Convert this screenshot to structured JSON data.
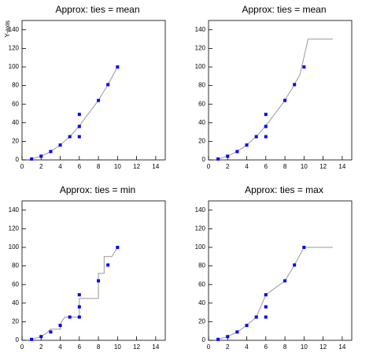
{
  "chart_data": [
    {
      "type": "scatter",
      "title": "Approx: ties = mean",
      "ylabel": "Y-axis",
      "xlim": [
        0,
        15
      ],
      "ylim": [
        0,
        150
      ],
      "xticks": [
        0,
        2,
        4,
        6,
        8,
        10,
        12,
        14
      ],
      "yticks": [
        0,
        20,
        40,
        60,
        80,
        100,
        120,
        140
      ],
      "points": {
        "color": "#0000ff",
        "x": [
          1,
          2,
          3,
          4,
          5,
          6,
          6,
          6,
          8,
          9,
          10
        ],
        "y": [
          1,
          4,
          9,
          16,
          25,
          25,
          36,
          49,
          64,
          81,
          100
        ]
      },
      "curve": {
        "color": "#999999",
        "x": [
          1,
          2,
          3,
          4,
          5,
          6,
          8,
          9,
          10
        ],
        "y": [
          1,
          4,
          9,
          16,
          25,
          36.67,
          64,
          81,
          100
        ]
      }
    },
    {
      "type": "scatter",
      "title": "Approx: ties = mean",
      "xlim": [
        0,
        15
      ],
      "ylim": [
        0,
        150
      ],
      "xticks": [
        0,
        2,
        4,
        6,
        8,
        10,
        12,
        14
      ],
      "yticks": [
        0,
        20,
        40,
        60,
        80,
        100,
        120,
        140
      ],
      "points": {
        "color": "#0000ff",
        "x": [
          1,
          2,
          3,
          4,
          5,
          6,
          6,
          6,
          8,
          9,
          10
        ],
        "y": [
          1,
          4,
          9,
          16,
          25,
          25,
          36,
          49,
          64,
          81,
          100
        ]
      },
      "curve": {
        "color": "#999999",
        "x": [
          1,
          1.857,
          2.714,
          3.571,
          4.429,
          5.286,
          6.143,
          7,
          7.857,
          8.714,
          9.571,
          10.429,
          11.286,
          12.143,
          13
        ],
        "y": [
          1,
          3.57,
          7.57,
          13,
          19.86,
          28.33,
          38.62,
          50.33,
          62.05,
          76.14,
          91.86,
          130,
          130,
          130,
          130
        ]
      }
    },
    {
      "type": "scatter",
      "title": "Approx: ties = min",
      "xlim": [
        0,
        15
      ],
      "ylim": [
        0,
        150
      ],
      "xticks": [
        0,
        2,
        4,
        6,
        8,
        10,
        12,
        14
      ],
      "yticks": [
        0,
        20,
        40,
        60,
        80,
        100,
        120,
        140
      ],
      "points": {
        "color": "#0000ff",
        "x": [
          1,
          2,
          3,
          4,
          5,
          6,
          6,
          6,
          8,
          9,
          10
        ],
        "y": [
          1,
          4,
          9,
          16,
          25,
          25,
          36,
          49,
          64,
          81,
          100
        ]
      },
      "curve": {
        "color": "#999999",
        "x": [
          1,
          2,
          2.6,
          3,
          4,
          4,
          4.5,
          6,
          6,
          8,
          8,
          8.6,
          8.6,
          9.4,
          10
        ],
        "y": [
          1,
          4,
          8,
          12,
          12,
          18,
          25,
          25,
          45,
          45,
          72,
          72,
          90,
          90,
          100
        ]
      }
    },
    {
      "type": "scatter",
      "title": "Approx: ties = max",
      "xlim": [
        0,
        15
      ],
      "ylim": [
        0,
        150
      ],
      "xticks": [
        0,
        2,
        4,
        6,
        8,
        10,
        12,
        14
      ],
      "yticks": [
        0,
        20,
        40,
        60,
        80,
        100,
        120,
        140
      ],
      "points": {
        "color": "#0000ff",
        "x": [
          1,
          2,
          3,
          4,
          5,
          6,
          6,
          6,
          8,
          9,
          10
        ],
        "y": [
          1,
          4,
          9,
          16,
          25,
          25,
          36,
          49,
          64,
          81,
          100
        ]
      },
      "curve": {
        "color": "#999999",
        "x": [
          1,
          2,
          3,
          4,
          5,
          6,
          8,
          9,
          10,
          13
        ],
        "y": [
          1,
          4,
          9,
          16,
          25,
          49,
          64,
          81,
          100,
          100
        ]
      }
    }
  ]
}
